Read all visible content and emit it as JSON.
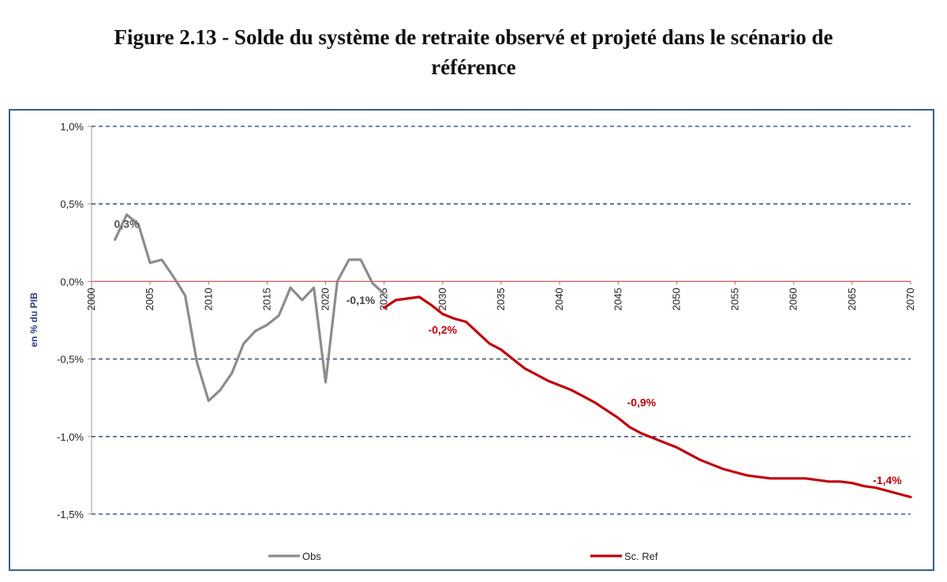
{
  "figure": {
    "title_line1": "Figure 2.13 - Solde du système de retraite observé et projeté dans le scénario de",
    "title_line2": "référence"
  },
  "colors": {
    "obs": "#8c8c8c",
    "ref": "#c0000b",
    "zero_line": "#e05050",
    "grid": "#1f3a6a",
    "frame": "#3a5f8a",
    "ylabel": "#2a3f7a"
  },
  "chart_data": {
    "type": "line",
    "ylabel": "en % du PIB",
    "ylim": [
      -1.5,
      1.0
    ],
    "xlim": [
      2000,
      2070
    ],
    "y_ticks": [
      1.0,
      0.5,
      0.0,
      -0.5,
      -1.0,
      -1.5
    ],
    "y_tick_labels": [
      "1,0%",
      "0,5%",
      "0,0%",
      "-0,5%",
      "-1,0%",
      "-1,5%"
    ],
    "x_ticks": [
      2000,
      2005,
      2010,
      2015,
      2020,
      2025,
      2030,
      2035,
      2040,
      2045,
      2050,
      2055,
      2060,
      2065,
      2070
    ],
    "x_tick_labels": [
      "2000",
      "2005",
      "2010",
      "2015",
      "2020",
      "2025",
      "2030",
      "2035",
      "2040",
      "2045",
      "2050",
      "2055",
      "2060",
      "2065",
      "2070"
    ],
    "grid": "horizontal dashed",
    "legend_position": "bottom",
    "series": [
      {
        "name": "Obs",
        "color": "#8c8c8c",
        "x": [
          2002,
          2003,
          2004,
          2005,
          2006,
          2007,
          2008,
          2009,
          2010,
          2011,
          2012,
          2013,
          2014,
          2015,
          2016,
          2017,
          2018,
          2019,
          2020,
          2021,
          2022,
          2023,
          2024,
          2025
        ],
        "y": [
          0.27,
          0.43,
          0.37,
          0.12,
          0.14,
          0.03,
          -0.09,
          -0.52,
          -0.77,
          -0.7,
          -0.59,
          -0.4,
          -0.32,
          -0.28,
          -0.22,
          -0.04,
          -0.12,
          -0.04,
          -0.65,
          0.0,
          0.14,
          0.14,
          -0.01,
          -0.08
        ]
      },
      {
        "name": "Sc. Ref",
        "color": "#c0000b",
        "x": [
          2025,
          2026,
          2027,
          2028,
          2029,
          2030,
          2031,
          2032,
          2033,
          2034,
          2035,
          2036,
          2037,
          2038,
          2039,
          2040,
          2041,
          2042,
          2043,
          2044,
          2045,
          2046,
          2047,
          2048,
          2049,
          2050,
          2051,
          2052,
          2053,
          2054,
          2055,
          2056,
          2057,
          2058,
          2059,
          2060,
          2061,
          2062,
          2063,
          2064,
          2065,
          2066,
          2067,
          2068,
          2069,
          2070
        ],
        "y": [
          -0.17,
          -0.12,
          -0.11,
          -0.1,
          -0.15,
          -0.21,
          -0.24,
          -0.26,
          -0.33,
          -0.4,
          -0.44,
          -0.5,
          -0.56,
          -0.6,
          -0.64,
          -0.67,
          -0.7,
          -0.74,
          -0.78,
          -0.83,
          -0.88,
          -0.94,
          -0.98,
          -1.01,
          -1.04,
          -1.07,
          -1.11,
          -1.15,
          -1.18,
          -1.21,
          -1.23,
          -1.25,
          -1.26,
          -1.27,
          -1.27,
          -1.27,
          -1.27,
          -1.28,
          -1.29,
          -1.29,
          -1.3,
          -1.32,
          -1.33,
          -1.35,
          -1.37,
          -1.39
        ]
      }
    ],
    "annotations": [
      {
        "text": "0,3%",
        "x": 2003,
        "y": 0.37,
        "series": "Obs",
        "color": "#555555"
      },
      {
        "text": "-0,1%",
        "x": 2023,
        "y": -0.12,
        "series": "Obs",
        "color": "#444444"
      },
      {
        "text": "-0,2%",
        "x": 2030,
        "y": -0.31,
        "series": "Sc. Ref",
        "color": "#c0000b"
      },
      {
        "text": "-0,9%",
        "x": 2047,
        "y": -0.78,
        "series": "Sc. Ref",
        "color": "#c0000b"
      },
      {
        "text": "-1,4%",
        "x": 2068,
        "y": -1.28,
        "series": "Sc. Ref",
        "color": "#c0000b"
      }
    ]
  }
}
